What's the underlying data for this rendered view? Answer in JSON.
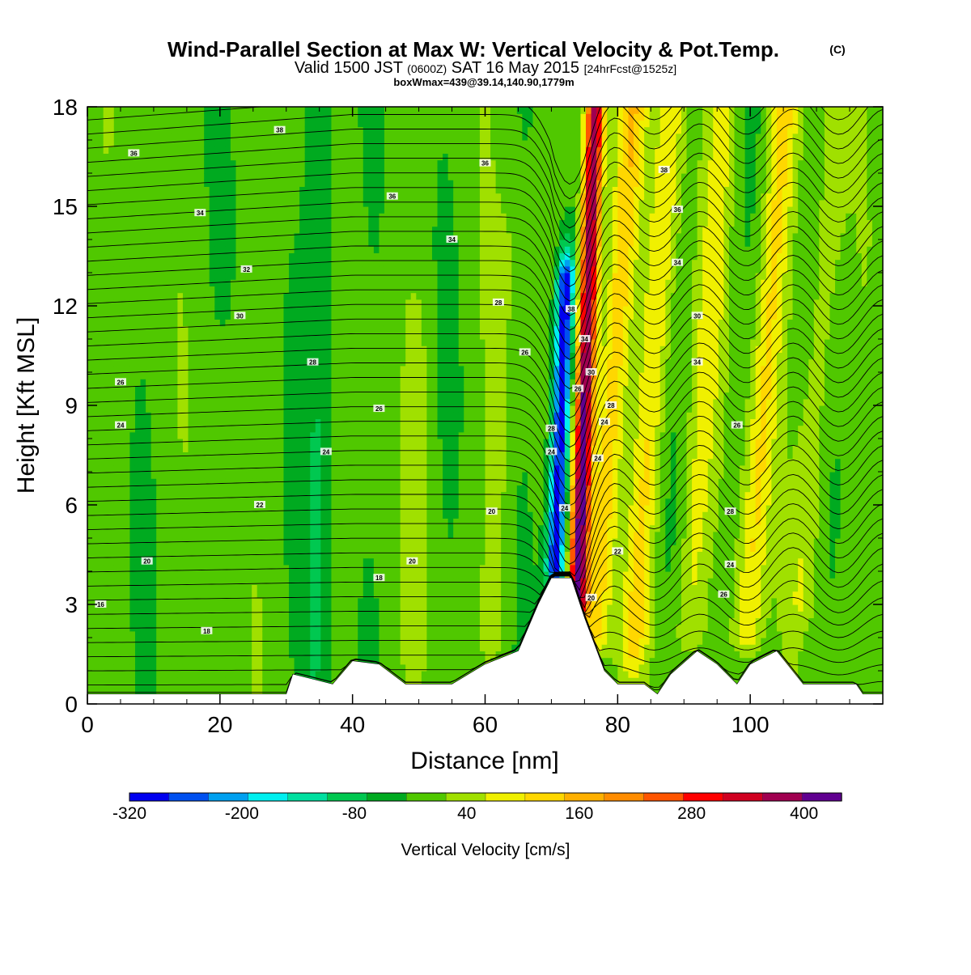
{
  "chart_data": {
    "type": "heatmap",
    "title": "Wind-Parallel Section at Max W: Vertical Velocity & Pot.Temp.",
    "title_mark": "(C)",
    "subtitle_main": "Valid 1500 JST",
    "subtitle_utc": "(0600Z)",
    "subtitle_date": "SAT 16 May 2015",
    "subtitle_fcst": "[24hrFcst@1525z]",
    "subtitle2": "boxWmax=439@39.14,140.90,1779m",
    "xlabel": "Distance [nm]",
    "ylabel": "Height [Kft MSL]",
    "xlim": [
      0,
      120
    ],
    "ylim": [
      0,
      18
    ],
    "xticks": [
      0,
      20,
      40,
      60,
      80,
      100
    ],
    "yticks": [
      0,
      3,
      6,
      9,
      12,
      15,
      18
    ],
    "colorbar": {
      "label": "Vertical Velocity [cm/s]",
      "range": [
        -320,
        440
      ],
      "tick_values": [
        -320,
        -200,
        -80,
        40,
        160,
        280,
        400
      ],
      "tick_labels": [
        "-320",
        "-200",
        "-80",
        "40",
        "160",
        "280",
        "400"
      ],
      "colors": [
        "#0000f0",
        "#0050f0",
        "#00a0f0",
        "#00f0f0",
        "#00e0a0",
        "#00c850",
        "#00aa20",
        "#50c800",
        "#a0e000",
        "#f0f000",
        "#ffd700",
        "#ffb000",
        "#ff8c00",
        "#ff5500",
        "#ff0000",
        "#d00020",
        "#a00050",
        "#600090"
      ]
    },
    "terrain": [
      [
        0,
        0.3
      ],
      [
        30,
        0.3
      ],
      [
        31,
        0.9
      ],
      [
        37,
        0.6
      ],
      [
        40,
        1.3
      ],
      [
        44,
        1.2
      ],
      [
        48,
        0.6
      ],
      [
        55,
        0.6
      ],
      [
        60,
        1.2
      ],
      [
        65,
        1.6
      ],
      [
        68,
        3.0
      ],
      [
        70,
        3.8
      ],
      [
        73,
        3.8
      ],
      [
        75,
        2.6
      ],
      [
        78,
        1.0
      ],
      [
        80,
        0.6
      ],
      [
        84,
        0.6
      ],
      [
        86,
        0.3
      ],
      [
        88,
        0.9
      ],
      [
        92,
        1.6
      ],
      [
        95,
        1.2
      ],
      [
        98,
        0.6
      ],
      [
        100,
        1.2
      ],
      [
        104,
        1.6
      ],
      [
        108,
        0.6
      ],
      [
        116,
        0.6
      ],
      [
        117,
        0.3
      ],
      [
        120,
        0.3
      ]
    ],
    "w_features": [
      {
        "x": 75.0,
        "y_top": 18,
        "y_bottom": 3.0,
        "w": 420
      },
      {
        "x": 71.5,
        "y_top": 13,
        "y_bottom": 4.0,
        "w": -320
      },
      {
        "x": 79,
        "y_top": 18,
        "y_bottom": 2.0,
        "w": 140
      },
      {
        "x": 85,
        "y_top": 18,
        "y_bottom": 1.5,
        "w": 110
      },
      {
        "x": 93,
        "y_top": 18,
        "y_bottom": 2.0,
        "w": 80
      },
      {
        "x": 102,
        "y_top": 18,
        "y_bottom": 2.0,
        "w": 120
      },
      {
        "x": 110,
        "y_top": 18,
        "y_bottom": 3.0,
        "w": 60
      },
      {
        "x": 62,
        "y_top": 14,
        "y_bottom": 2.0,
        "w": 40
      },
      {
        "x": 50,
        "y_top": 12,
        "y_bottom": 1.5,
        "w": 30
      },
      {
        "x": 20,
        "y_top": 10,
        "y_bottom": 0.5,
        "w": 20
      },
      {
        "x": 35,
        "y_top": 18,
        "y_bottom": 0.5,
        "w": -60
      }
    ],
    "theta_labels": [
      {
        "x": 29,
        "y": 17.3,
        "text": "38"
      },
      {
        "x": 7,
        "y": 16.6,
        "text": "36"
      },
      {
        "x": 60,
        "y": 16.3,
        "text": "36"
      },
      {
        "x": 46,
        "y": 15.3,
        "text": "36"
      },
      {
        "x": 17,
        "y": 14.8,
        "text": "34"
      },
      {
        "x": 55,
        "y": 14.0,
        "text": "34"
      },
      {
        "x": 24,
        "y": 13.1,
        "text": "32"
      },
      {
        "x": 62,
        "y": 12.1,
        "text": "28"
      },
      {
        "x": 23,
        "y": 11.7,
        "text": "30"
      },
      {
        "x": 66,
        "y": 10.6,
        "text": "26"
      },
      {
        "x": 34,
        "y": 10.3,
        "text": "28"
      },
      {
        "x": 5,
        "y": 9.7,
        "text": "26"
      },
      {
        "x": 44,
        "y": 8.9,
        "text": "26"
      },
      {
        "x": 5,
        "y": 8.4,
        "text": "24"
      },
      {
        "x": 36,
        "y": 7.6,
        "text": "24"
      },
      {
        "x": 26,
        "y": 6.0,
        "text": "22"
      },
      {
        "x": 61,
        "y": 5.8,
        "text": "20"
      },
      {
        "x": 9,
        "y": 4.3,
        "text": "20"
      },
      {
        "x": 49,
        "y": 4.3,
        "text": "20"
      },
      {
        "x": 44,
        "y": 3.8,
        "text": "18"
      },
      {
        "x": 2,
        "y": 3.0,
        "text": "16"
      },
      {
        "x": 18,
        "y": 2.2,
        "text": "18"
      },
      {
        "x": 73,
        "y": 11.9,
        "text": "38"
      },
      {
        "x": 75,
        "y": 11.0,
        "text": "34"
      },
      {
        "x": 76,
        "y": 10.0,
        "text": "30"
      },
      {
        "x": 74,
        "y": 9.5,
        "text": "26"
      },
      {
        "x": 79,
        "y": 9.0,
        "text": "28"
      },
      {
        "x": 78,
        "y": 8.5,
        "text": "24"
      },
      {
        "x": 70,
        "y": 8.3,
        "text": "28"
      },
      {
        "x": 70,
        "y": 7.6,
        "text": "24"
      },
      {
        "x": 77,
        "y": 7.4,
        "text": "24"
      },
      {
        "x": 72,
        "y": 5.9,
        "text": "24"
      },
      {
        "x": 80,
        "y": 4.6,
        "text": "22"
      },
      {
        "x": 76,
        "y": 3.2,
        "text": "20"
      },
      {
        "x": 87,
        "y": 16.1,
        "text": "38"
      },
      {
        "x": 89,
        "y": 14.9,
        "text": "36"
      },
      {
        "x": 89,
        "y": 13.3,
        "text": "34"
      },
      {
        "x": 92,
        "y": 11.7,
        "text": "30"
      },
      {
        "x": 92,
        "y": 10.3,
        "text": "34"
      },
      {
        "x": 98,
        "y": 8.4,
        "text": "26"
      },
      {
        "x": 97,
        "y": 5.8,
        "text": "28"
      },
      {
        "x": 97,
        "y": 4.2,
        "text": "24"
      },
      {
        "x": 96,
        "y": 3.3,
        "text": "26"
      }
    ]
  }
}
